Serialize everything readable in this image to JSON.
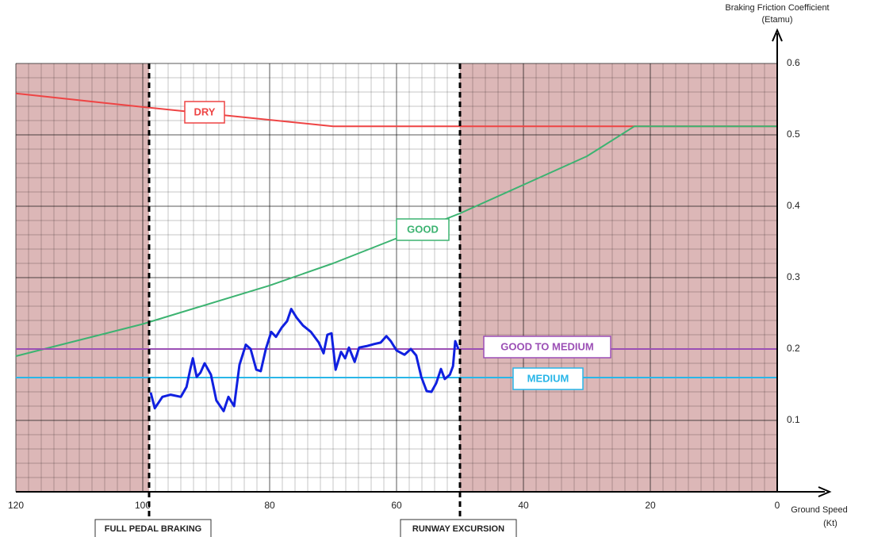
{
  "chart_data": {
    "type": "line",
    "y_title": [
      "Braking Friction Coefficient",
      "(Etamu)"
    ],
    "x_title": [
      "Ground Speed",
      "(Kt)"
    ],
    "xlim": [
      120,
      0
    ],
    "ylim": [
      0,
      0.6
    ],
    "xticks": [
      120,
      100,
      80,
      60,
      40,
      20,
      0
    ],
    "yticks": [
      0.1,
      0.2,
      0.3,
      0.4,
      0.5,
      0.6
    ],
    "grid": true,
    "series": [
      {
        "name": "DRY",
        "color": "#ee4444",
        "x": [
          120,
          100,
          70,
          0
        ],
        "values": [
          0.558,
          0.539,
          0.512,
          0.512
        ]
      },
      {
        "name": "GOOD",
        "color": "#3cb371",
        "x": [
          120,
          100,
          80,
          70,
          60,
          50,
          40,
          30,
          22.5,
          0
        ],
        "values": [
          0.19,
          0.235,
          0.289,
          0.32,
          0.355,
          0.39,
          0.43,
          0.47,
          0.512,
          0.512
        ]
      },
      {
        "name": "GOOD TO MEDIUM",
        "color": "#9b4fb5",
        "x": [
          120,
          0
        ],
        "values": [
          0.2,
          0.2
        ]
      },
      {
        "name": "MEDIUM",
        "color": "#29b6e8",
        "x": [
          120,
          0
        ],
        "values": [
          0.16,
          0.16
        ]
      },
      {
        "color": "#1020e0",
        "x": [
          98.75,
          98.1,
          96.9,
          95.6,
          94.0,
          93.1,
          92.5,
          92.1,
          91.5,
          90.9,
          90.25,
          89.25,
          88.4,
          87.25,
          86.5,
          85.6,
          84.75,
          83.75,
          83.0,
          82.1,
          81.4,
          80.6,
          79.75,
          79.0,
          78.1,
          77.25,
          76.6,
          75.75,
          74.75,
          73.5,
          72.25,
          71.5,
          70.9,
          70.25,
          69.6,
          68.75,
          68.1,
          67.5,
          66.6,
          65.9,
          64.75,
          63.5,
          62.5,
          61.6,
          60.9,
          60.0,
          58.75,
          57.75,
          56.9,
          56.1,
          55.25,
          54.5,
          53.75,
          53.0,
          52.4,
          51.6,
          51.1,
          50.75,
          50.25
        ],
        "values": [
          0.139,
          0.117,
          0.133,
          0.136,
          0.133,
          0.147,
          0.172,
          0.187,
          0.161,
          0.167,
          0.18,
          0.164,
          0.128,
          0.113,
          0.133,
          0.12,
          0.178,
          0.206,
          0.2,
          0.171,
          0.169,
          0.2,
          0.224,
          0.217,
          0.23,
          0.239,
          0.256,
          0.244,
          0.233,
          0.224,
          0.209,
          0.194,
          0.22,
          0.222,
          0.171,
          0.196,
          0.187,
          0.202,
          0.182,
          0.202,
          0.204,
          0.207,
          0.209,
          0.218,
          0.211,
          0.198,
          0.192,
          0.2,
          0.191,
          0.161,
          0.141,
          0.14,
          0.152,
          0.172,
          0.158,
          0.164,
          0.176,
          0.211,
          0.2
        ]
      }
    ],
    "annotations": [
      {
        "text": "FULL PEDAL BRAKING",
        "x": 99
      },
      {
        "text": "RUNWAY EXCURSION",
        "x": 50
      }
    ]
  }
}
